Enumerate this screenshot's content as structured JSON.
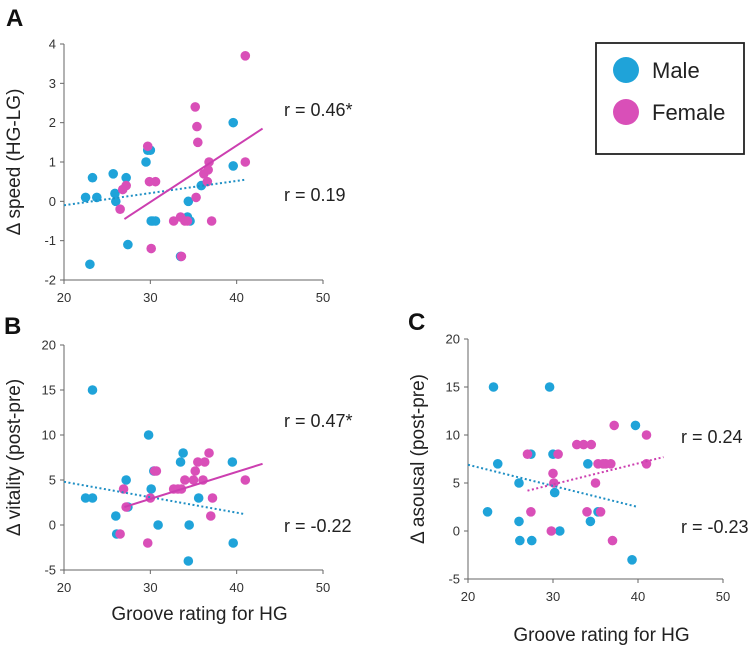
{
  "legend": {
    "position": "top-right",
    "items": [
      {
        "label": "Male",
        "color": "#1fa3d9"
      },
      {
        "label": "Female",
        "color": "#d94fb8"
      }
    ]
  },
  "colors": {
    "male": "#1fa3d9",
    "female": "#d94fb8",
    "male_trend": "#1f8fc4",
    "female_trend": "#cc3fb0",
    "axis": "#666666"
  },
  "chart_data": [
    {
      "id": "A",
      "panel_label": "A",
      "type": "scatter",
      "xlabel": "",
      "ylabel": "Δ speed (HG-LG)",
      "xlim": [
        20,
        50
      ],
      "xticks": [
        20,
        30,
        40,
        50
      ],
      "ylim": [
        -2,
        4
      ],
      "yticks": [
        -2,
        -1,
        0,
        1,
        2,
        3,
        4
      ],
      "series": [
        {
          "name": "Male",
          "x": [
            22.5,
            23.3,
            23,
            25.7,
            25.9,
            26,
            27.2,
            27.4,
            29.5,
            29.7,
            30,
            30.1,
            30.3,
            30.6,
            33.5,
            34.3,
            34.6,
            34.4,
            35.9,
            39.6,
            39.6,
            23.8
          ],
          "y": [
            0.1,
            0.6,
            -1.6,
            0.7,
            0.2,
            0.0,
            0.6,
            -1.1,
            1.0,
            1.3,
            1.3,
            -0.5,
            -0.5,
            -0.5,
            -1.4,
            -0.4,
            -0.5,
            0.0,
            0.4,
            0.9,
            2.0,
            0.1
          ]
        },
        {
          "name": "Female",
          "x": [
            26.5,
            26.8,
            27.2,
            29.7,
            29.9,
            30.1,
            30.6,
            32.7,
            33.5,
            33.6,
            34.0,
            35.2,
            35.4,
            35.5,
            36.2,
            36.6,
            36.7,
            36.8,
            37.1,
            41.0,
            41.0,
            35.3,
            34.3
          ],
          "y": [
            -0.2,
            0.3,
            0.4,
            1.4,
            0.5,
            -1.2,
            0.5,
            -0.5,
            -0.4,
            -1.4,
            -0.5,
            2.4,
            1.9,
            1.5,
            0.7,
            0.5,
            0.8,
            1.0,
            -0.5,
            3.7,
            1.0,
            0.1,
            -0.5
          ]
        }
      ],
      "trendlines": [
        {
          "name": "Male",
          "style": "dotted",
          "x": [
            20,
            41
          ],
          "y": [
            -0.1,
            0.55
          ]
        },
        {
          "name": "Female",
          "style": "solid",
          "x": [
            27,
            43
          ],
          "y": [
            -0.45,
            1.85
          ]
        }
      ],
      "annotations": [
        {
          "text": "r = 0.46*",
          "series": "Female"
        },
        {
          "text": "r = 0.19",
          "series": "Male"
        }
      ]
    },
    {
      "id": "B",
      "panel_label": "B",
      "type": "scatter",
      "xlabel": "Groove rating for HG",
      "ylabel": "Δ vitality (post-pre)",
      "xlim": [
        20,
        50
      ],
      "xticks": [
        20,
        30,
        40,
        50
      ],
      "ylim": [
        -5,
        20
      ],
      "yticks": [
        -5,
        0,
        5,
        10,
        15,
        20
      ],
      "series": [
        {
          "name": "Male",
          "x": [
            22.5,
            23.3,
            23.3,
            26,
            26.1,
            27.2,
            27.4,
            29.8,
            30.1,
            30.4,
            30.9,
            33.8,
            34.4,
            34.5,
            35.6,
            39.5,
            39.6,
            33.5
          ],
          "y": [
            3,
            15,
            3,
            1,
            -1,
            5,
            2,
            10,
            4,
            6,
            0,
            8,
            -4,
            0,
            3,
            7,
            -2,
            7
          ]
        },
        {
          "name": "Female",
          "x": [
            26.5,
            26.9,
            27.2,
            29.7,
            30.0,
            30.5,
            30.7,
            32.7,
            33.2,
            34.0,
            35.0,
            35.2,
            35.5,
            36.1,
            36.3,
            36.8,
            37.0,
            37.2,
            41.0,
            33.6
          ],
          "y": [
            -1,
            4,
            2,
            -2,
            3,
            6,
            6,
            4,
            4,
            5,
            5,
            6,
            7,
            5,
            7,
            8,
            1,
            3,
            5,
            4
          ]
        }
      ],
      "trendlines": [
        {
          "name": "Male",
          "style": "dotted",
          "x": [
            20,
            41
          ],
          "y": [
            4.8,
            1.2
          ]
        },
        {
          "name": "Female",
          "style": "solid",
          "x": [
            27,
            43
          ],
          "y": [
            2.0,
            6.8
          ]
        }
      ],
      "annotations": [
        {
          "text": "r = 0.47*",
          "series": "Female"
        },
        {
          "text": "r = -0.22",
          "series": "Male"
        }
      ]
    },
    {
      "id": "C",
      "panel_label": "C",
      "type": "scatter",
      "xlabel": "Groove rating for HG",
      "ylabel": "Δ asousal (post-pre)",
      "xlim": [
        20,
        50
      ],
      "xticks": [
        20,
        30,
        40,
        50
      ],
      "ylim": [
        -5,
        20
      ],
      "yticks": [
        -5,
        0,
        5,
        10,
        15,
        20
      ],
      "series": [
        {
          "name": "Male",
          "x": [
            22.3,
            23.0,
            23.5,
            26.0,
            26.0,
            26.1,
            27.5,
            27.4,
            29.6,
            30.0,
            30.2,
            30.8,
            34.1,
            34.4,
            35.3,
            39.3,
            39.7
          ],
          "y": [
            2,
            15,
            7,
            5,
            1,
            -1,
            -1,
            8,
            15,
            8,
            4,
            0,
            7,
            1,
            2,
            -3,
            11
          ]
        },
        {
          "name": "Female",
          "x": [
            27.0,
            27.4,
            29.8,
            30.0,
            30.1,
            30.6,
            32.8,
            33.6,
            34.0,
            34.5,
            35.3,
            35.6,
            35.9,
            36.2,
            36.8,
            37.0,
            37.2,
            41.0,
            41.0,
            35.0
          ],
          "y": [
            8,
            2,
            0,
            6,
            5,
            8,
            9,
            9,
            2,
            9,
            7,
            2,
            7,
            7,
            7,
            -1,
            11,
            10,
            7,
            5
          ]
        }
      ],
      "trendlines": [
        {
          "name": "Male",
          "style": "dotted",
          "x": [
            20,
            40
          ],
          "y": [
            6.9,
            2.5
          ]
        },
        {
          "name": "Female",
          "style": "dotted",
          "x": [
            27,
            43
          ],
          "y": [
            4.2,
            7.7
          ]
        }
      ],
      "annotations": [
        {
          "text": "r = 0.24",
          "series": "Female"
        },
        {
          "text": "r = -0.23",
          "series": "Male"
        }
      ]
    }
  ]
}
